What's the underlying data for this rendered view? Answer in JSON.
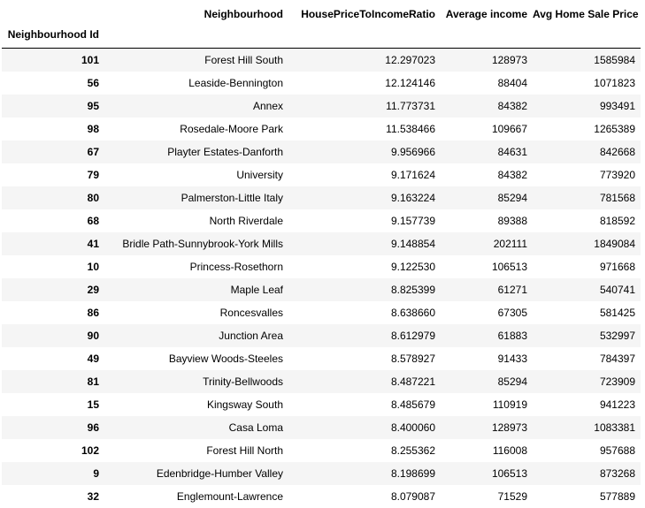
{
  "table": {
    "columns": [
      "Neighbourhood",
      "HousePriceToIncomeRatio",
      "Average income",
      "Avg Home Sale Price"
    ],
    "index_name": "Neighbourhood Id",
    "rows": [
      {
        "id": "101",
        "neighbourhood": "Forest Hill South",
        "ratio": "12.297023",
        "income": "128973",
        "price": "1585984"
      },
      {
        "id": "56",
        "neighbourhood": "Leaside-Bennington",
        "ratio": "12.124146",
        "income": "88404",
        "price": "1071823"
      },
      {
        "id": "95",
        "neighbourhood": "Annex",
        "ratio": "11.773731",
        "income": "84382",
        "price": "993491"
      },
      {
        "id": "98",
        "neighbourhood": "Rosedale-Moore Park",
        "ratio": "11.538466",
        "income": "109667",
        "price": "1265389"
      },
      {
        "id": "67",
        "neighbourhood": "Playter Estates-Danforth",
        "ratio": "9.956966",
        "income": "84631",
        "price": "842668"
      },
      {
        "id": "79",
        "neighbourhood": "University",
        "ratio": "9.171624",
        "income": "84382",
        "price": "773920"
      },
      {
        "id": "80",
        "neighbourhood": "Palmerston-Little Italy",
        "ratio": "9.163224",
        "income": "85294",
        "price": "781568"
      },
      {
        "id": "68",
        "neighbourhood": "North Riverdale",
        "ratio": "9.157739",
        "income": "89388",
        "price": "818592"
      },
      {
        "id": "41",
        "neighbourhood": "Bridle Path-Sunnybrook-York Mills",
        "ratio": "9.148854",
        "income": "202111",
        "price": "1849084"
      },
      {
        "id": "10",
        "neighbourhood": "Princess-Rosethorn",
        "ratio": "9.122530",
        "income": "106513",
        "price": "971668"
      },
      {
        "id": "29",
        "neighbourhood": "Maple Leaf",
        "ratio": "8.825399",
        "income": "61271",
        "price": "540741"
      },
      {
        "id": "86",
        "neighbourhood": "Roncesvalles",
        "ratio": "8.638660",
        "income": "67305",
        "price": "581425"
      },
      {
        "id": "90",
        "neighbourhood": "Junction Area",
        "ratio": "8.612979",
        "income": "61883",
        "price": "532997"
      },
      {
        "id": "49",
        "neighbourhood": "Bayview Woods-Steeles",
        "ratio": "8.578927",
        "income": "91433",
        "price": "784397"
      },
      {
        "id": "81",
        "neighbourhood": "Trinity-Bellwoods",
        "ratio": "8.487221",
        "income": "85294",
        "price": "723909"
      },
      {
        "id": "15",
        "neighbourhood": "Kingsway South",
        "ratio": "8.485679",
        "income": "110919",
        "price": "941223"
      },
      {
        "id": "96",
        "neighbourhood": "Casa Loma",
        "ratio": "8.400060",
        "income": "128973",
        "price": "1083381"
      },
      {
        "id": "102",
        "neighbourhood": "Forest Hill North",
        "ratio": "8.255362",
        "income": "116008",
        "price": "957688"
      },
      {
        "id": "9",
        "neighbourhood": "Edenbridge-Humber Valley",
        "ratio": "8.198699",
        "income": "106513",
        "price": "873268"
      },
      {
        "id": "32",
        "neighbourhood": "Englemount-Lawrence",
        "ratio": "8.079087",
        "income": "71529",
        "price": "577889"
      }
    ]
  },
  "colors": {
    "striped_row": "#f5f5f5",
    "plain_row": "#ffffff",
    "text": "#000000",
    "header_rule": "#000000"
  }
}
